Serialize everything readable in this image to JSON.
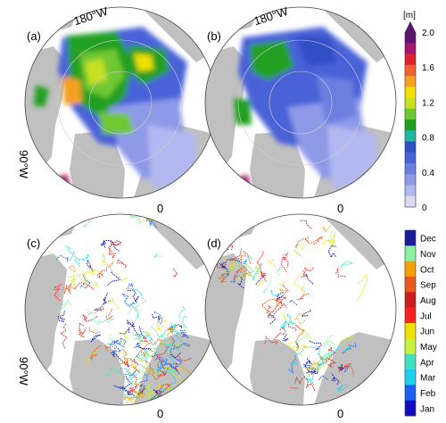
{
  "panels": [
    {
      "id": "a",
      "label": "(a)",
      "top_label": "180°W",
      "left_label": "90°W",
      "bottom_label": "0"
    },
    {
      "id": "b",
      "label": "(b)",
      "top_label": "180°W",
      "left_label": "",
      "bottom_label": "0"
    },
    {
      "id": "c",
      "label": "(c)",
      "top_label": "",
      "left_label": "90°W",
      "bottom_label": "0"
    },
    {
      "id": "d",
      "label": "(d)",
      "top_label": "",
      "left_label": "",
      "bottom_label": "0"
    }
  ],
  "thickness_colorbar": {
    "unit": "[m]",
    "ticks": [
      "2.0",
      "1.6",
      "1.2",
      "0.8",
      "0.4",
      "0"
    ],
    "colors": [
      "#5a1570",
      "#a0186e",
      "#e0202a",
      "#f06030",
      "#f5a020",
      "#f0e000",
      "#c8e020",
      "#70c830",
      "#20a020",
      "#20b8a0",
      "#3050c8",
      "#4a62d8",
      "#6c7ee0",
      "#8e9ae8",
      "#b2b8f0",
      "#d8daf8"
    ]
  },
  "month_colorbar": {
    "labels": [
      "Dec",
      "Nov",
      "Oct",
      "Sep",
      "Aug",
      "Jul",
      "Jun",
      "May",
      "Apr",
      "Mar",
      "Feb",
      "Jan"
    ],
    "colors": [
      "#1a1a9a",
      "#8cf0a0",
      "#f5a000",
      "#e85a20",
      "#c81e1e",
      "#ff2020",
      "#f0e000",
      "#c8f040",
      "#40e0c0",
      "#20d0f0",
      "#2060f0",
      "#1010c0"
    ]
  },
  "colors": {
    "land": "#c0c0c0",
    "ocean": "#ffffff",
    "coast": "#ffffff"
  }
}
